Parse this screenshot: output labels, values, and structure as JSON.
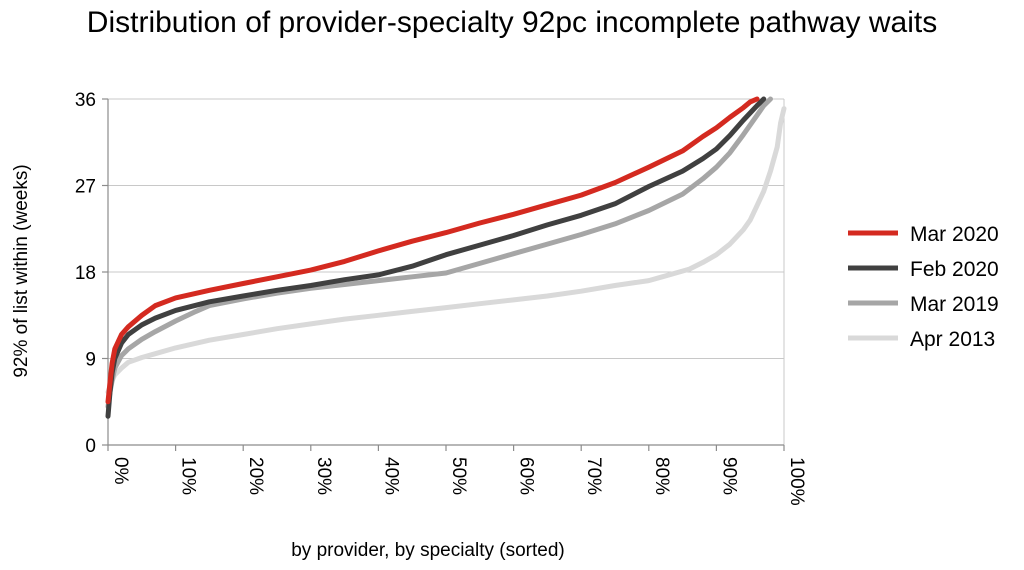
{
  "chart_data": {
    "type": "line",
    "title": "Distribution of provider-specialty 92pc incomplete pathway waits",
    "xlabel": "by provider, by specialty (sorted)",
    "ylabel": "92% of list within (weeks)",
    "xlim": [
      0,
      100
    ],
    "ylim": [
      0,
      36
    ],
    "xticks": [
      "0%",
      "10%",
      "20%",
      "30%",
      "40%",
      "50%",
      "60%",
      "70%",
      "80%",
      "90%",
      "100%"
    ],
    "yticks": [
      "0",
      "9",
      "18",
      "27",
      "36"
    ],
    "grid": "horizontal",
    "legend_position": "right",
    "series": [
      {
        "name": "Apr 2013",
        "color": "#d9d9d9",
        "x": [
          0,
          0.5,
          1,
          2,
          3,
          5,
          7,
          10,
          15,
          20,
          25,
          30,
          35,
          40,
          45,
          50,
          55,
          60,
          65,
          70,
          75,
          80,
          82,
          84,
          86,
          88,
          90,
          92,
          94,
          95,
          96,
          97,
          98,
          99,
          99.5,
          100
        ],
        "values": [
          5.5,
          6.5,
          7.3,
          8.0,
          8.6,
          9.1,
          9.5,
          10.1,
          10.9,
          11.5,
          12.1,
          12.6,
          13.1,
          13.5,
          13.9,
          14.3,
          14.7,
          15.1,
          15.5,
          16.0,
          16.6,
          17.1,
          17.5,
          17.9,
          18.3,
          19.0,
          19.8,
          20.9,
          22.4,
          23.4,
          24.9,
          26.4,
          28.5,
          31.0,
          33.5,
          35.0
        ]
      },
      {
        "name": "Mar 2019",
        "color": "#a6a6a6",
        "x": [
          0,
          0.3,
          0.7,
          1,
          2,
          3,
          5,
          7,
          10,
          13,
          15,
          20,
          25,
          30,
          35,
          40,
          45,
          50,
          55,
          60,
          65,
          70,
          75,
          80,
          85,
          88,
          90,
          92,
          94,
          96,
          97,
          98
        ],
        "values": [
          4.0,
          5.5,
          7.0,
          8.0,
          9.3,
          10.0,
          11.0,
          11.8,
          12.9,
          13.9,
          14.5,
          15.2,
          15.8,
          16.3,
          16.7,
          17.1,
          17.5,
          17.9,
          18.9,
          19.9,
          20.9,
          21.9,
          23.0,
          24.4,
          26.1,
          27.7,
          28.9,
          30.4,
          32.3,
          34.3,
          35.3,
          36.0
        ]
      },
      {
        "name": "Feb 2020",
        "color": "#404040",
        "x": [
          0,
          0.3,
          0.6,
          1,
          2,
          3,
          5,
          7,
          10,
          15,
          20,
          25,
          30,
          35,
          40,
          45,
          50,
          55,
          60,
          65,
          70,
          75,
          80,
          85,
          88,
          90,
          92,
          94,
          96,
          97
        ],
        "values": [
          3.0,
          5.5,
          7.5,
          9.0,
          10.6,
          11.5,
          12.5,
          13.2,
          14.0,
          14.9,
          15.5,
          16.1,
          16.6,
          17.2,
          17.7,
          18.6,
          19.8,
          20.8,
          21.8,
          22.9,
          23.9,
          25.1,
          26.9,
          28.5,
          29.8,
          30.8,
          32.2,
          33.8,
          35.3,
          36.0
        ]
      },
      {
        "name": "Mar 2020",
        "color": "#d42a20",
        "x": [
          0,
          0.3,
          0.6,
          1,
          2,
          3,
          5,
          7,
          10,
          15,
          20,
          25,
          30,
          35,
          40,
          45,
          50,
          55,
          60,
          65,
          70,
          75,
          80,
          85,
          88,
          90,
          92,
          94,
          95,
          96
        ],
        "values": [
          4.5,
          6.5,
          8.5,
          10.0,
          11.5,
          12.3,
          13.5,
          14.5,
          15.3,
          16.1,
          16.8,
          17.5,
          18.2,
          19.1,
          20.2,
          21.2,
          22.1,
          23.1,
          24.0,
          25.0,
          26.0,
          27.3,
          28.9,
          30.6,
          32.1,
          33.0,
          34.1,
          35.1,
          35.7,
          36.0
        ]
      }
    ],
    "legend_order": [
      "Mar 2020",
      "Feb 2020",
      "Mar 2019",
      "Apr 2013"
    ]
  }
}
